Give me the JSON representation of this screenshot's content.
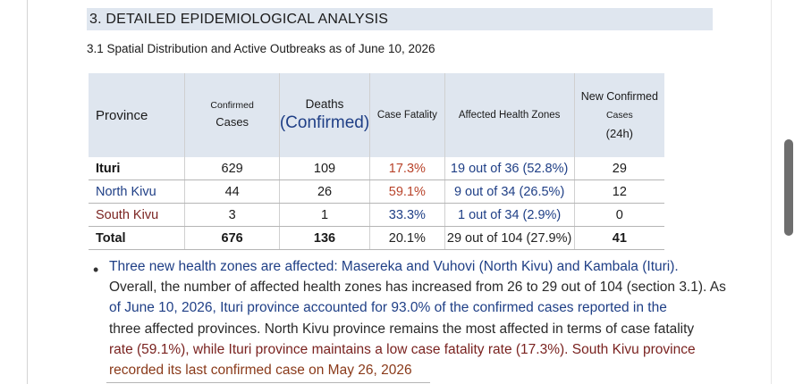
{
  "section": {
    "title": "3. DETAILED EPIDEMIOLOGICAL ANALYSIS",
    "subtitle": "3.1 Spatial Distribution and Active Outbreaks as of June 10, 2026"
  },
  "table": {
    "headers": {
      "province": "Province",
      "confirmed_top": "Confirmed",
      "confirmed_bottom": "Cases",
      "deaths_top": "Deaths",
      "deaths_bottom": "(Confirmed)",
      "cfr": "Case Fatality",
      "zones": "Affected Health Zones",
      "new_1": "New Confirmed",
      "new_2": "Cases",
      "new_3": "(24h)"
    },
    "rows": [
      {
        "province": "Ituri",
        "confirmed": "629",
        "deaths": "109",
        "cfr": "17.3%",
        "zones": "19 out of 36 (52.8%)",
        "new": "29"
      },
      {
        "province": "North Kivu",
        "confirmed": "44",
        "deaths": "26",
        "cfr": "59.1%",
        "zones": "9 out of 34 (26.5%)",
        "new": "12"
      },
      {
        "province": "South Kivu",
        "confirmed": "3",
        "deaths": "1",
        "cfr": "33.3%",
        "zones": "1 out of 34 (2.9%)",
        "new": "0"
      }
    ],
    "total": {
      "province": "Total",
      "confirmed": "676",
      "deaths": "136",
      "cfr": "20.1%",
      "zones": "29 out of 104 (27.9%)",
      "new": "41"
    }
  },
  "bullet": {
    "lines": [
      "Three new health zones are affected: Masereka and Vuhovi (North Kivu) and Kambala (Ituri).",
      "Overall, the number of affected health zones has increased from 26 to 29 out of 104 (section 3.1). As",
      "of June 10, 2026, Ituri province accounted for 93.0% of the confirmed cases reported in the",
      "three affected provinces. North Kivu province remains the most affected in terms of case fatality",
      "rate (59.1%), while Ituri province maintains a low case fatality rate (17.3%). South Kivu province",
      "recorded its last confirmed case on May 26, 2026"
    ]
  },
  "colors": {
    "header_bg": "#dfe6ef",
    "accent_blue": "#1f3f86",
    "accent_red": "#7a2320",
    "cfr_red": "#b8432a"
  }
}
